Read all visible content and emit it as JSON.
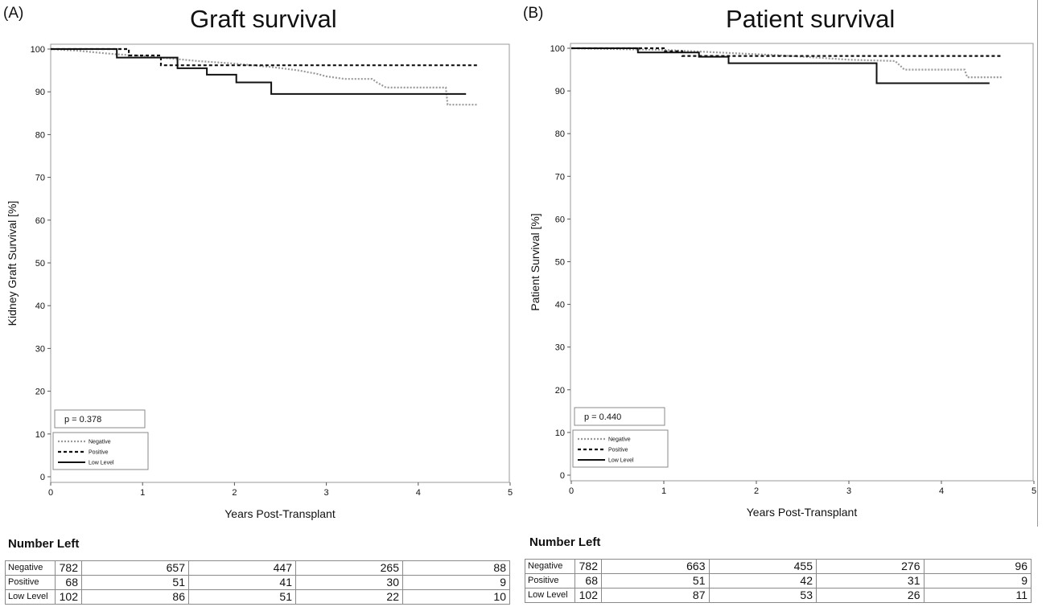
{
  "panels": [
    {
      "letter": "(A)",
      "title": "Graft survival",
      "p_value_text": "p = 0.378",
      "number_left_title": "Number Left",
      "number_left": [
        {
          "label": "Negative",
          "values": [
            "782",
            "657",
            "447",
            "265",
            "88"
          ]
        },
        {
          "label": "Positive",
          "values": [
            "68",
            "51",
            "41",
            "30",
            "9"
          ]
        },
        {
          "label": "Low Level",
          "values": [
            "102",
            "86",
            "51",
            "22",
            "10"
          ]
        }
      ]
    },
    {
      "letter": "(B)",
      "title": "Patient survival",
      "p_value_text": "p = 0.440",
      "number_left_title": "Number Left",
      "number_left": [
        {
          "label": "Negative",
          "values": [
            "782",
            "663",
            "455",
            "276",
            "96"
          ]
        },
        {
          "label": "Positive",
          "values": [
            "68",
            "51",
            "42",
            "31",
            "9"
          ]
        },
        {
          "label": "Low Level",
          "values": [
            "102",
            "87",
            "53",
            "26",
            "11"
          ]
        }
      ]
    }
  ],
  "chart_data": [
    {
      "type": "line",
      "title": "Graft survival",
      "xlabel": "Years Post-Transplant",
      "ylabel": "Kidney Graft Survival [%]",
      "xlim": [
        0,
        5
      ],
      "ylim": [
        0,
        100
      ],
      "xticks": [
        0,
        1,
        2,
        3,
        4,
        5
      ],
      "yticks": [
        0,
        10,
        20,
        30,
        40,
        50,
        60,
        70,
        80,
        90,
        100
      ],
      "grid": false,
      "legend_position": "bottom-left",
      "series": [
        {
          "name": "Negative",
          "style": "dotted-gray",
          "color": "#9a9a9a",
          "points": [
            [
              0,
              100
            ],
            [
              0.3,
              99.6
            ],
            [
              0.5,
              99.2
            ],
            [
              0.7,
              98.8
            ],
            [
              1.0,
              98.4
            ],
            [
              1.3,
              97.8
            ],
            [
              1.6,
              97.2
            ],
            [
              2.0,
              96.6
            ],
            [
              2.4,
              95.8
            ],
            [
              2.7,
              95.0
            ],
            [
              2.9,
              94.2
            ],
            [
              3.0,
              93.6
            ],
            [
              3.2,
              93.0
            ],
            [
              3.5,
              93.0
            ],
            [
              3.55,
              92.2
            ],
            [
              3.65,
              91.0
            ],
            [
              4.3,
              91.0
            ],
            [
              4.32,
              87.0
            ],
            [
              4.65,
              87.0
            ]
          ]
        },
        {
          "name": "Positive",
          "style": "dashed-black",
          "color": "#111111",
          "points": [
            [
              0,
              100
            ],
            [
              0.85,
              100
            ],
            [
              0.85,
              98.5
            ],
            [
              1.2,
              98.5
            ],
            [
              1.2,
              96.2
            ],
            [
              4.65,
              96.2
            ]
          ]
        },
        {
          "name": "Low Level",
          "style": "solid-black",
          "color": "#111111",
          "points": [
            [
              0,
              100
            ],
            [
              0.72,
              100
            ],
            [
              0.72,
              98.0
            ],
            [
              1.38,
              98.0
            ],
            [
              1.38,
              95.5
            ],
            [
              1.7,
              95.5
            ],
            [
              1.7,
              94.0
            ],
            [
              2.02,
              94.0
            ],
            [
              2.02,
              92.2
            ],
            [
              2.4,
              92.2
            ],
            [
              2.4,
              89.5
            ],
            [
              4.52,
              89.5
            ]
          ]
        }
      ]
    },
    {
      "type": "line",
      "title": "Patient survival",
      "xlabel": "Years Post-Transplant",
      "ylabel": "Patient Survival [%]",
      "xlim": [
        0,
        5
      ],
      "ylim": [
        0,
        100
      ],
      "xticks": [
        0,
        1,
        2,
        3,
        4,
        5
      ],
      "yticks": [
        0,
        10,
        20,
        30,
        40,
        50,
        60,
        70,
        80,
        90,
        100
      ],
      "grid": false,
      "legend_position": "bottom-left",
      "series": [
        {
          "name": "Negative",
          "style": "dotted-gray",
          "color": "#9a9a9a",
          "points": [
            [
              0,
              100
            ],
            [
              1.0,
              99.6
            ],
            [
              1.4,
              99.2
            ],
            [
              1.8,
              98.8
            ],
            [
              2.2,
              98.4
            ],
            [
              2.6,
              97.9
            ],
            [
              3.0,
              97.3
            ],
            [
              3.5,
              97.0
            ],
            [
              3.6,
              95.0
            ],
            [
              4.25,
              95.0
            ],
            [
              4.28,
              93.2
            ],
            [
              4.65,
              93.2
            ]
          ]
        },
        {
          "name": "Positive",
          "style": "dashed-black",
          "color": "#111111",
          "points": [
            [
              0,
              100
            ],
            [
              1.0,
              100
            ],
            [
              1.0,
              99.3
            ],
            [
              1.2,
              99.3
            ],
            [
              1.2,
              98.2
            ],
            [
              4.65,
              98.2
            ]
          ]
        },
        {
          "name": "Low Level",
          "style": "solid-black",
          "color": "#111111",
          "points": [
            [
              0,
              100
            ],
            [
              0.72,
              100
            ],
            [
              0.72,
              99.0
            ],
            [
              1.38,
              99.0
            ],
            [
              1.38,
              98.0
            ],
            [
              1.7,
              98.0
            ],
            [
              1.7,
              96.5
            ],
            [
              3.3,
              96.5
            ],
            [
              3.3,
              91.8
            ],
            [
              4.52,
              91.8
            ]
          ]
        }
      ]
    }
  ]
}
